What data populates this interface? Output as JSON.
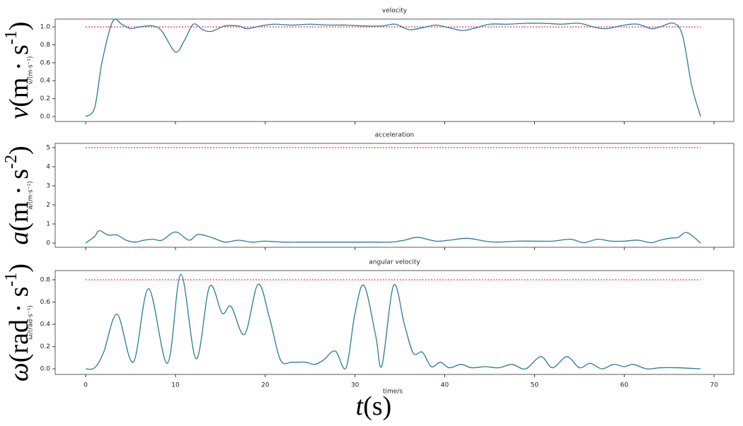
{
  "chart_data": [
    {
      "type": "line",
      "title": "velocity",
      "ylabel": "v/(m·s⁻¹)",
      "outer_label": [
        "v",
        "(m · s",
        "-1",
        ")"
      ],
      "color": "#2b7a99",
      "limit": {
        "value": 1.0,
        "color": "#e8112d"
      },
      "xlim": [
        -3.4,
        72.2
      ],
      "xticks": [
        0,
        10,
        20,
        30,
        40,
        50,
        60,
        70
      ],
      "xtick_labels": false,
      "ylim": [
        -0.055,
        1.087
      ],
      "yticks": [
        {
          "value": 0,
          "label": "0.0"
        },
        {
          "value": 0.2,
          "label": "0.2"
        },
        {
          "value": 0.4,
          "label": "0.4"
        },
        {
          "value": 0.6,
          "label": "0.6"
        },
        {
          "value": 0.8,
          "label": "0.8"
        },
        {
          "value": 1,
          "label": "1.0"
        }
      ],
      "x": [
        0,
        1,
        1.8,
        3,
        4,
        5,
        6,
        7.5,
        8.5,
        10,
        11,
        12,
        13,
        14,
        15.5,
        17,
        18,
        19.5,
        21,
        23,
        25,
        27,
        29,
        31,
        33,
        34.5,
        36,
        37.5,
        39,
        40.5,
        42,
        43.5,
        45,
        47,
        49,
        51,
        53,
        55,
        56.5,
        58,
        60,
        61.5,
        63,
        64,
        65.5,
        66.5,
        67.5,
        68.5
      ],
      "values": [
        0,
        0.1,
        0.6,
        1.06,
        1.03,
        0.98,
        1.0,
        1.01,
        0.95,
        0.72,
        0.85,
        1.03,
        0.97,
        0.95,
        1.01,
        1.01,
        0.98,
        1.01,
        1.03,
        1.02,
        1.03,
        1.02,
        1.02,
        1.01,
        1.01,
        1.03,
        0.97,
        0.99,
        1.02,
        0.99,
        0.96,
        0.99,
        1.03,
        1.03,
        1.04,
        1.04,
        1.03,
        1.04,
        1.0,
        0.98,
        1.02,
        1.03,
        0.98,
        1.0,
        1.04,
        0.9,
        0.35,
        0.0
      ]
    },
    {
      "type": "line",
      "title": "acceleration",
      "ylabel": "a/(m·s⁻²)",
      "outer_label": [
        "a",
        "(m · s",
        "-2",
        ")"
      ],
      "color": "#2b7a99",
      "limit": {
        "value": 5,
        "color": "#e8112d"
      },
      "xlim": [
        -3.4,
        72.2
      ],
      "xticks": [
        0,
        10,
        20,
        30,
        40,
        50,
        60,
        70
      ],
      "xtick_labels": false,
      "ylim": [
        -0.22,
        5.22
      ],
      "yticks": [
        0,
        1,
        2,
        3,
        4,
        5
      ],
      "x": [
        0,
        1,
        1.5,
        2.5,
        3.5,
        4.5,
        5.5,
        6.5,
        7.5,
        8.5,
        10,
        11.5,
        12.5,
        14,
        15.5,
        17,
        18.5,
        20,
        22,
        24,
        26,
        28,
        30,
        32,
        34,
        35.5,
        37,
        39,
        40.5,
        42.5,
        44.5,
        46,
        48,
        50,
        52,
        54,
        55.5,
        57,
        58.5,
        60,
        61.5,
        63,
        64,
        65,
        66,
        67,
        68.5
      ],
      "values": [
        0,
        0.35,
        0.65,
        0.42,
        0.42,
        0.15,
        0.05,
        0.15,
        0.2,
        0.15,
        0.58,
        0.15,
        0.45,
        0.3,
        0.05,
        0.15,
        0.05,
        0.1,
        0.05,
        0.05,
        0.05,
        0.05,
        0.05,
        0.05,
        0.05,
        0.15,
        0.3,
        0.1,
        0.15,
        0.25,
        0.1,
        0.05,
        0.1,
        0.1,
        0.1,
        0.2,
        0.02,
        0.2,
        0.1,
        0.1,
        0.15,
        0.02,
        0.15,
        0.25,
        0.3,
        0.55,
        0.0
      ]
    },
    {
      "type": "line",
      "title": "angular velocity",
      "ylabel": "ω/(rad·s⁻¹)",
      "outer_label": [
        "ω",
        "(rad · s",
        "-1",
        ")"
      ],
      "xlabel": "time/s",
      "x_outer_label": [
        "t",
        "(s)"
      ],
      "color": "#2b7a99",
      "limit": {
        "value": 0.8,
        "color": "#e8112d"
      },
      "xlim": [
        -3.4,
        72.2
      ],
      "xticks": [
        0,
        10,
        20,
        30,
        40,
        50,
        60,
        70
      ],
      "xtick_labels": true,
      "ylim": [
        -0.05,
        0.883
      ],
      "yticks": [
        {
          "value": 0,
          "label": "0.0"
        },
        {
          "value": 0.2,
          "label": "0.2"
        },
        {
          "value": 0.4,
          "label": "0.4"
        },
        {
          "value": 0.6,
          "label": "0.6"
        },
        {
          "value": 0.8,
          "label": "0.8"
        }
      ],
      "x": [
        0,
        1,
        2,
        3.5,
        5.3,
        7,
        9.1,
        10.6,
        12.3,
        13.8,
        15.2,
        16.2,
        17.7,
        19.2,
        20.5,
        21.7,
        23,
        24.5,
        25.5,
        26.5,
        27.8,
        29,
        30,
        31,
        32.3,
        33,
        34.3,
        35.5,
        36.5,
        37.5,
        38.5,
        39.5,
        40.5,
        41.8,
        43,
        44.5,
        46,
        47.5,
        49,
        50.7,
        52,
        53.6,
        55,
        56.2,
        57.5,
        58.8,
        60,
        61,
        62.5,
        64,
        66,
        68.5
      ],
      "values": [
        0,
        0.01,
        0.15,
        0.49,
        0.06,
        0.72,
        0.05,
        0.85,
        0.09,
        0.74,
        0.5,
        0.56,
        0.31,
        0.76,
        0.45,
        0.08,
        0.06,
        0.06,
        0.04,
        0.08,
        0.16,
        0.01,
        0.5,
        0.75,
        0.3,
        0.03,
        0.75,
        0.4,
        0.14,
        0.15,
        0.02,
        0.06,
        0.01,
        0.04,
        0.01,
        0.02,
        0.01,
        0.04,
        0.0,
        0.11,
        0.01,
        0.11,
        0.01,
        0.05,
        0.0,
        0.04,
        0.02,
        0.04,
        0.0,
        0.01,
        0.01,
        0.0
      ]
    }
  ]
}
